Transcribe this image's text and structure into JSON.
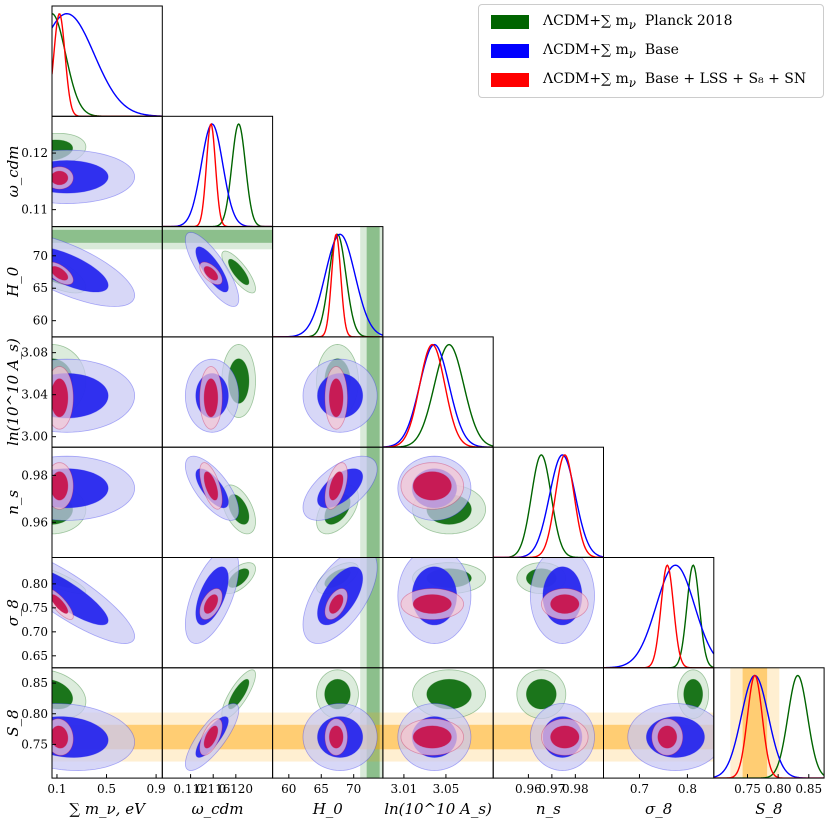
{
  "chart_data": {
    "type": "corner",
    "parameters": [
      {
        "id": "mnu",
        "label": "∑ m_ν, eV",
        "range": [
          0.06,
          0.95
        ],
        "ticks": [
          0.1,
          0.5,
          0.9
        ],
        "tick_labels": [
          "0.1",
          "0.5",
          "0.9"
        ]
      },
      {
        "id": "wcdm",
        "label": "ω_cdm",
        "range": [
          0.107,
          0.1265
        ],
        "ticks": [
          0.112,
          0.116,
          0.12
        ],
        "tick_labels": [
          "0.112",
          "0.116",
          "0.120"
        ]
      },
      {
        "id": "H0",
        "label": "H_0",
        "range": [
          57.5,
          74.5
        ],
        "ticks": [
          60,
          65,
          70
        ],
        "tick_labels": [
          "60",
          "65",
          "70"
        ]
      },
      {
        "id": "lnAs",
        "label": "ln(10^10 A_s)",
        "range": [
          2.99,
          3.095
        ],
        "ticks": [
          3.01,
          3.05
        ],
        "tick_labels": [
          "3.01",
          "3.05"
        ]
      },
      {
        "id": "ns",
        "label": "n_s",
        "range": [
          0.945,
          0.992
        ],
        "ticks": [
          0.96,
          0.97,
          0.98
        ],
        "tick_labels": [
          "0.96",
          "0.97",
          "0.98"
        ]
      },
      {
        "id": "sigma8",
        "label": "σ_8",
        "range": [
          0.625,
          0.855
        ],
        "ticks": [
          0.7,
          0.8
        ],
        "tick_labels": [
          "0.7",
          "0.8"
        ]
      },
      {
        "id": "S8",
        "label": "S_8",
        "range": [
          0.695,
          0.875
        ],
        "ticks": [
          0.75,
          0.8,
          0.85
        ],
        "tick_labels": [
          "0.75",
          "0.80",
          "0.85"
        ]
      }
    ],
    "y_ticks": {
      "wcdm": {
        "values": [
          0.11,
          0.12
        ],
        "labels": [
          "0.11",
          "0.12"
        ]
      },
      "H0": {
        "values": [
          60,
          65,
          70
        ],
        "labels": [
          "60",
          "65",
          "70"
        ]
      },
      "lnAs": {
        "values": [
          3.0,
          3.04,
          3.08
        ],
        "labels": [
          "3.00",
          "3.04",
          "3.08"
        ]
      },
      "ns": {
        "values": [
          0.96,
          0.98
        ],
        "labels": [
          "0.96",
          "0.98"
        ]
      },
      "sigma8": {
        "values": [
          0.65,
          0.7,
          0.75,
          0.8
        ],
        "labels": [
          "0.65",
          "0.70",
          "0.75",
          "0.80"
        ]
      },
      "S8": {
        "values": [
          0.75,
          0.8,
          0.85
        ],
        "labels": [
          "0.75",
          "0.80",
          "0.85"
        ]
      }
    },
    "series": [
      {
        "name": "ΛCDM+∑m_ν Planck 2018",
        "color": "#006400",
        "mean": {
          "mnu": 0.06,
          "wcdm": 0.1205,
          "H0": 67.5,
          "lnAs": 3.053,
          "ns": 0.9655,
          "sigma8": 0.812,
          "S8": 0.832
        },
        "sd": {
          "mnu": 0.11,
          "wcdm": 0.0012,
          "H0": 1.3,
          "lnAs": 0.014,
          "ns": 0.0042,
          "sigma8": 0.013,
          "S8": 0.016
        },
        "corr": {
          "mnu|wcdm": 0.2,
          "mnu|H0": -0.7,
          "mnu|sigma8": -0.85,
          "mnu|S8": -0.3,
          "wcdm|H0": -0.8,
          "wcdm|sigma8": 0.6,
          "wcdm|S8": 0.8,
          "H0|sigma8": 0.6,
          "H0|ns": 0.5,
          "wcdm|ns": -0.5
        }
      },
      {
        "name": "ΛCDM+∑m_ν Base",
        "color": "#0000ff",
        "mean": {
          "mnu": 0.18,
          "wcdm": 0.1158,
          "H0": 67.9,
          "lnAs": 3.039,
          "ns": 0.9745,
          "sigma8": 0.775,
          "S8": 0.762
        },
        "sd": {
          "mnu": 0.22,
          "wcdm": 0.0019,
          "H0": 2.3,
          "lnAs": 0.014,
          "ns": 0.0055,
          "sigma8": 0.04,
          "S8": 0.022
        },
        "corr": {
          "mnu|wcdm": 0.0,
          "mnu|H0": -0.7,
          "mnu|sigma8": -0.85,
          "mnu|S8": -0.15,
          "wcdm|H0": -0.8,
          "wcdm|sigma8": 0.6,
          "wcdm|S8": 0.8,
          "H0|sigma8": 0.6,
          "H0|ns": 0.6,
          "wcdm|ns": -0.7
        }
      },
      {
        "name": "ΛCDM+∑m_ν Base+LSS+S8+SN",
        "color": "#ff0000",
        "mean": {
          "mnu": 0.12,
          "wcdm": 0.1156,
          "H0": 67.3,
          "lnAs": 3.037,
          "ns": 0.9755,
          "sigma8": 0.758,
          "S8": 0.762
        },
        "sd": {
          "mnu": 0.045,
          "wcdm": 0.0008,
          "H0": 0.7,
          "lnAs": 0.012,
          "ns": 0.004,
          "sigma8": 0.013,
          "S8": 0.012
        },
        "corr": {
          "mnu|wcdm": 0.0,
          "mnu|H0": -0.6,
          "mnu|sigma8": -0.8,
          "mnu|S8": -0.1,
          "wcdm|H0": -0.6,
          "wcdm|sigma8": 0.5,
          "wcdm|S8": 0.6,
          "H0|sigma8": 0.5,
          "H0|ns": 0.5,
          "wcdm|ns": -0.6
        }
      }
    ],
    "bands": [
      {
        "param": "H0",
        "center": 73.0,
        "sigma": 1.0,
        "color": "#2e8b2e"
      },
      {
        "param": "S8",
        "center": 0.762,
        "sigma": 0.02,
        "color": "#ffa500"
      }
    ]
  },
  "legend": {
    "entries": [
      {
        "math": "ΛCDM+∑ m",
        "sub": "ν",
        "text": "Planck 2018",
        "color": "#006400"
      },
      {
        "math": "ΛCDM+∑ m",
        "sub": "ν",
        "text": "Base",
        "color": "#0000ff"
      },
      {
        "math": "ΛCDM+∑ m",
        "sub": "ν",
        "text": "Base + LSS + S₈ + SN",
        "color": "#ff0000"
      }
    ]
  }
}
